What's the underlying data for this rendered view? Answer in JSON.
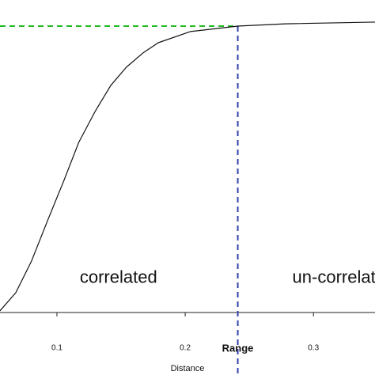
{
  "chart_data": {
    "type": "line",
    "xlabel": "Distance",
    "x": [
      0.0556,
      0.0679,
      0.0802,
      0.0926,
      0.105,
      0.117,
      0.13,
      0.142,
      0.154,
      0.167,
      0.179,
      0.204,
      0.241,
      0.278,
      0.348
    ],
    "series": [
      {
        "color": "#111111",
        "values": [
          0.006,
          0.069,
          0.18,
          0.32,
          0.456,
          0.594,
          0.704,
          0.793,
          0.856,
          0.906,
          0.942,
          0.981,
          1.0,
          1.008,
          1.014
        ]
      }
    ],
    "xlim": [
      0.0556,
      0.348
    ],
    "ylim": [
      0,
      1
    ],
    "xticks": [
      0.1,
      0.2,
      0.3
    ],
    "sill": {
      "value": 1,
      "color": "#22bb22"
    },
    "range": {
      "label": "Range",
      "value": 0.241,
      "color": "#3344aa"
    },
    "annotations": [
      {
        "text": "correlated",
        "x": 0.148,
        "y": 0.12
      },
      {
        "text": "un-correlat",
        "x": 0.316,
        "y": 0.12
      }
    ]
  }
}
